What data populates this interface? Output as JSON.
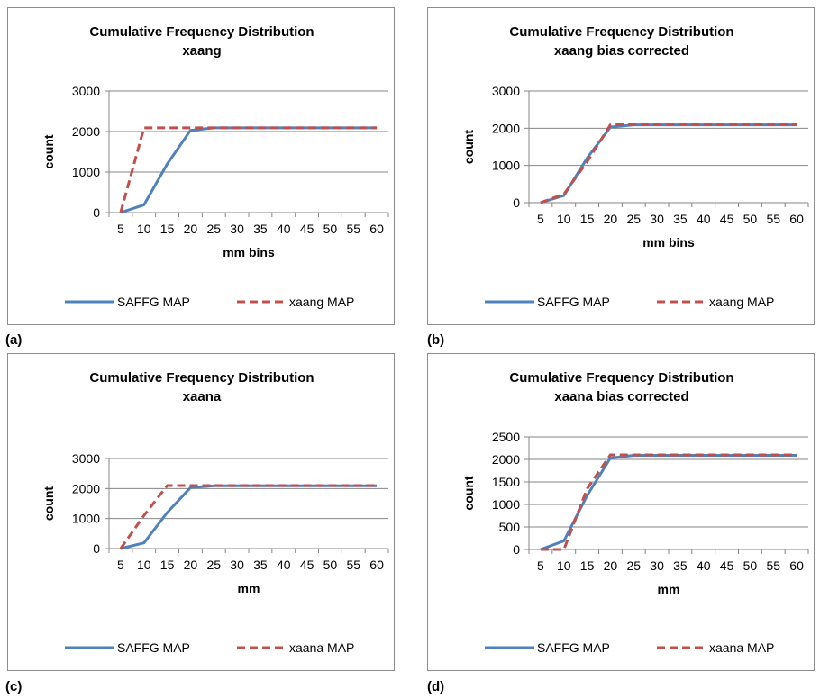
{
  "colors": {
    "saffg": "#4F81BD",
    "map": "#C0504D",
    "grid": "#868686"
  },
  "panel_tags": [
    "(a)",
    "(b)",
    "(c)",
    "(d)"
  ],
  "chart_data": [
    {
      "type": "line",
      "title": [
        "Cumulative Frequency Distribution",
        "xaang"
      ],
      "xlabel": "mm bins",
      "ylabel": "count",
      "categories": [
        "5",
        "10",
        "15",
        "20",
        "25",
        "30",
        "35",
        "40",
        "45",
        "50",
        "55",
        "60"
      ],
      "ylim": [
        0,
        3000
      ],
      "yticks": [
        0,
        1000,
        2000,
        3000
      ],
      "grid": true,
      "legend": "bottom",
      "series": [
        {
          "name": "SAFFG MAP",
          "style": "solid",
          "values": [
            0,
            190,
            1200,
            2030,
            2090,
            2090,
            2090,
            2090,
            2090,
            2090,
            2090,
            2090
          ]
        },
        {
          "name": "xaang MAP",
          "style": "dashed",
          "values": [
            0,
            2090,
            2090,
            2090,
            2090,
            2090,
            2090,
            2090,
            2090,
            2090,
            2090,
            2090
          ]
        }
      ]
    },
    {
      "type": "line",
      "title": [
        "Cumulative Frequency Distribution",
        "xaang bias corrected"
      ],
      "xlabel": "mm bins",
      "ylabel": "count",
      "categories": [
        "5",
        "10",
        "15",
        "20",
        "25",
        "30",
        "35",
        "40",
        "45",
        "50",
        "55",
        "60"
      ],
      "ylim": [
        0,
        3000
      ],
      "yticks": [
        0,
        1000,
        2000,
        3000
      ],
      "grid": true,
      "legend": "bottom",
      "series": [
        {
          "name": "SAFFG MAP",
          "style": "solid",
          "values": [
            0,
            190,
            1200,
            2030,
            2090,
            2090,
            2090,
            2090,
            2090,
            2090,
            2090,
            2090
          ]
        },
        {
          "name": "xaang MAP",
          "style": "dashed",
          "values": [
            0,
            230,
            1100,
            2090,
            2100,
            2100,
            2100,
            2100,
            2100,
            2100,
            2100,
            2100
          ]
        }
      ]
    },
    {
      "type": "line",
      "title": [
        "Cumulative Frequency Distribution",
        "xaana"
      ],
      "xlabel": "mm",
      "ylabel": "count",
      "categories": [
        "5",
        "10",
        "15",
        "20",
        "25",
        "30",
        "35",
        "40",
        "45",
        "50",
        "55",
        "60"
      ],
      "ylim": [
        0,
        3000
      ],
      "yticks": [
        0,
        1000,
        2000,
        3000
      ],
      "grid": true,
      "legend": "bottom",
      "series": [
        {
          "name": "SAFFG MAP",
          "style": "solid",
          "values": [
            0,
            190,
            1200,
            2030,
            2090,
            2090,
            2090,
            2090,
            2090,
            2090,
            2090,
            2090
          ]
        },
        {
          "name": "xaana MAP",
          "style": "dashed",
          "values": [
            0,
            1100,
            2100,
            2100,
            2100,
            2100,
            2100,
            2100,
            2100,
            2100,
            2100,
            2100
          ]
        }
      ]
    },
    {
      "type": "line",
      "title": [
        "Cumulative Frequency Distribution",
        "xaana bias corrected"
      ],
      "xlabel": "mm",
      "ylabel": "count",
      "categories": [
        "5",
        "10",
        "15",
        "20",
        "25",
        "30",
        "35",
        "40",
        "45",
        "50",
        "55",
        "60"
      ],
      "ylim": [
        0,
        2500
      ],
      "yticks": [
        0,
        500,
        1000,
        1500,
        2000,
        2500
      ],
      "grid": true,
      "legend": "bottom",
      "series": [
        {
          "name": "SAFFG MAP",
          "style": "solid",
          "values": [
            0,
            190,
            1200,
            2030,
            2090,
            2090,
            2090,
            2090,
            2090,
            2090,
            2090,
            2090
          ]
        },
        {
          "name": "xaana MAP",
          "style": "dashed",
          "values": [
            0,
            0,
            1350,
            2100,
            2100,
            2100,
            2100,
            2100,
            2100,
            2100,
            2100,
            2100
          ]
        }
      ]
    }
  ]
}
